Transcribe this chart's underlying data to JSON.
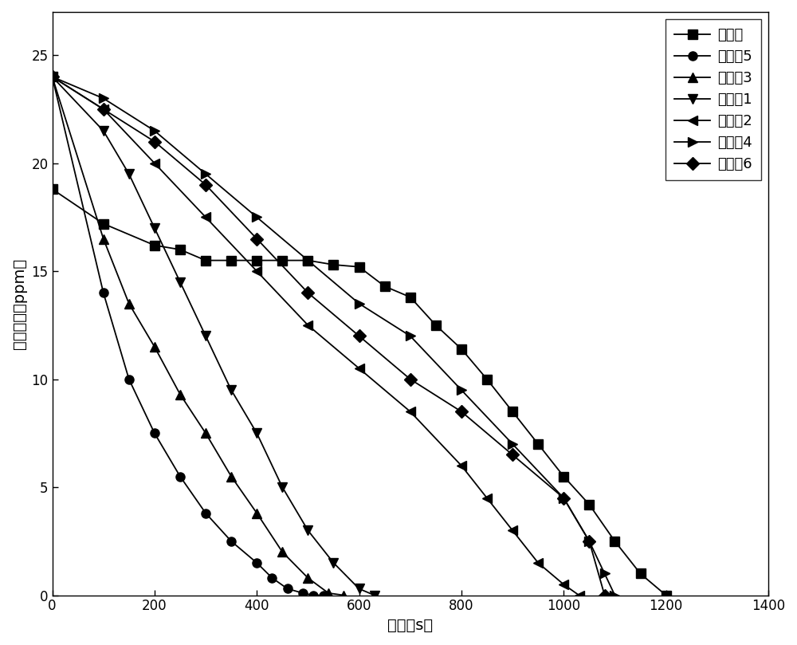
{
  "title": "",
  "xlabel": "时间（s）",
  "ylabel": "臭氧浓度（ppm）",
  "xlim": [
    0,
    1400
  ],
  "ylim": [
    0,
    27
  ],
  "yticks": [
    0,
    5,
    10,
    15,
    20,
    25
  ],
  "xticks": [
    0,
    200,
    400,
    600,
    800,
    1000,
    1200,
    1400
  ],
  "series": [
    {
      "label": "对比例",
      "marker": "s",
      "x": [
        0,
        100,
        200,
        250,
        300,
        350,
        400,
        450,
        500,
        550,
        600,
        650,
        700,
        750,
        800,
        850,
        900,
        950,
        1000,
        1050,
        1100,
        1150,
        1200
      ],
      "y": [
        18.8,
        17.2,
        16.2,
        16.0,
        15.5,
        15.5,
        15.5,
        15.5,
        15.5,
        15.3,
        15.2,
        14.3,
        13.8,
        12.5,
        11.4,
        10.0,
        8.5,
        7.0,
        5.5,
        4.2,
        2.5,
        1.0,
        0
      ]
    },
    {
      "label": "实施例5",
      "marker": "o",
      "x": [
        0,
        100,
        150,
        200,
        250,
        300,
        350,
        400,
        430,
        460,
        490,
        510,
        530
      ],
      "y": [
        24.0,
        14.0,
        10.0,
        7.5,
        5.5,
        3.8,
        2.5,
        1.5,
        0.8,
        0.3,
        0.1,
        0.0,
        0
      ]
    },
    {
      "label": "实施例3",
      "marker": "^",
      "x": [
        0,
        100,
        150,
        200,
        250,
        300,
        350,
        400,
        450,
        500,
        540,
        570
      ],
      "y": [
        24.0,
        16.5,
        13.5,
        11.5,
        9.3,
        7.5,
        5.5,
        3.8,
        2.0,
        0.8,
        0.1,
        0
      ]
    },
    {
      "label": "实施例1",
      "marker": "v",
      "x": [
        0,
        100,
        150,
        200,
        250,
        300,
        350,
        400,
        450,
        500,
        550,
        600,
        630
      ],
      "y": [
        24.0,
        21.5,
        19.5,
        17.0,
        14.5,
        12.0,
        9.5,
        7.5,
        5.0,
        3.0,
        1.5,
        0.3,
        0
      ]
    },
    {
      "label": "实施例2",
      "marker": "<",
      "x": [
        0,
        100,
        200,
        300,
        400,
        500,
        600,
        700,
        800,
        850,
        900,
        950,
        1000,
        1030
      ],
      "y": [
        24.0,
        22.5,
        20.0,
        17.5,
        15.0,
        12.5,
        10.5,
        8.5,
        6.0,
        4.5,
        3.0,
        1.5,
        0.5,
        0
      ]
    },
    {
      "label": "实施例4",
      "marker": ">",
      "x": [
        0,
        100,
        200,
        300,
        400,
        500,
        600,
        700,
        800,
        900,
        1000,
        1050,
        1080,
        1100
      ],
      "y": [
        24.0,
        23.0,
        21.5,
        19.5,
        17.5,
        15.5,
        13.5,
        12.0,
        9.5,
        7.0,
        4.5,
        2.5,
        1.0,
        0
      ]
    },
    {
      "label": "实施例6",
      "marker": "D",
      "x": [
        0,
        100,
        200,
        300,
        400,
        500,
        600,
        700,
        800,
        900,
        1000,
        1050,
        1080
      ],
      "y": [
        24.0,
        22.5,
        21.0,
        19.0,
        16.5,
        14.0,
        12.0,
        10.0,
        8.5,
        6.5,
        4.5,
        2.5,
        0
      ]
    }
  ],
  "background_color": "#ffffff",
  "line_color": "#000000",
  "marker_size": 8,
  "line_width": 1.3,
  "legend_fontsize": 13,
  "axis_fontsize": 14,
  "tick_fontsize": 12
}
